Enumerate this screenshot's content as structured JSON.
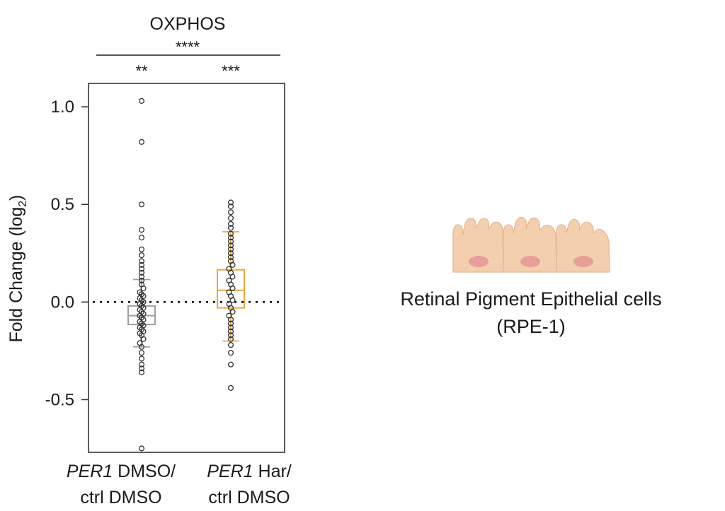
{
  "chart_data": {
    "type": "box",
    "title": "OXPHOS",
    "ylabel": "Fold Change (log",
    "ylabel_sub": "2",
    "ylabel_close": ")",
    "ylim": [
      -0.77,
      1.12
    ],
    "yticks": [
      {
        "value": 1.0,
        "label": "1.0"
      },
      {
        "value": 0.5,
        "label": "0.5"
      },
      {
        "value": 0.0,
        "label": "0.0"
      },
      {
        "value": -0.5,
        "label": "-0.5"
      }
    ],
    "reference_line": 0.0,
    "groups": [
      {
        "label_italic": "PER1",
        "label_rest": " DMSO/",
        "label_line2": "ctrl DMSO",
        "color": "#9e9e9e",
        "box": {
          "q1": -0.115,
          "median": -0.07,
          "q3": -0.02,
          "whisker_low": -0.23,
          "whisker_high": 0.115
        },
        "significance": "**",
        "points": [
          1.03,
          0.82,
          0.5,
          0.37,
          0.33,
          0.27,
          0.24,
          0.21,
          0.19,
          0.17,
          0.15,
          0.13,
          0.11,
          0.09,
          0.07,
          0.05,
          0.04,
          0.03,
          0.02,
          0.01,
          0.0,
          -0.01,
          -0.02,
          -0.03,
          -0.04,
          -0.05,
          -0.06,
          -0.07,
          -0.08,
          -0.09,
          -0.1,
          -0.11,
          -0.12,
          -0.13,
          -0.14,
          -0.15,
          -0.16,
          -0.17,
          -0.19,
          -0.21,
          -0.23,
          -0.26,
          -0.29,
          -0.32,
          -0.34,
          -0.36,
          -0.75
        ]
      },
      {
        "label_italic": "PER1",
        "label_rest": " Har/",
        "label_line2": "ctrl DMSO",
        "color": "#e8a93a",
        "box": {
          "q1": -0.03,
          "median": 0.06,
          "q3": 0.165,
          "whisker_low": -0.2,
          "whisker_high": 0.36
        },
        "significance": "***",
        "points": [
          0.51,
          0.49,
          0.46,
          0.43,
          0.4,
          0.38,
          0.35,
          0.33,
          0.31,
          0.29,
          0.27,
          0.25,
          0.23,
          0.21,
          0.19,
          0.17,
          0.15,
          0.13,
          0.11,
          0.09,
          0.07,
          0.05,
          0.03,
          0.01,
          -0.01,
          -0.03,
          -0.05,
          -0.07,
          -0.09,
          -0.11,
          -0.13,
          -0.15,
          -0.17,
          -0.19,
          -0.22,
          -0.26,
          -0.32,
          -0.44
        ]
      }
    ],
    "overall_significance": "****"
  },
  "illustration": {
    "caption_line1": "Retinal Pigment Epithelial cells",
    "caption_line2": "(RPE-1)",
    "cell_color": "#f3cfae",
    "nucleus_color": "#e79f9a"
  }
}
